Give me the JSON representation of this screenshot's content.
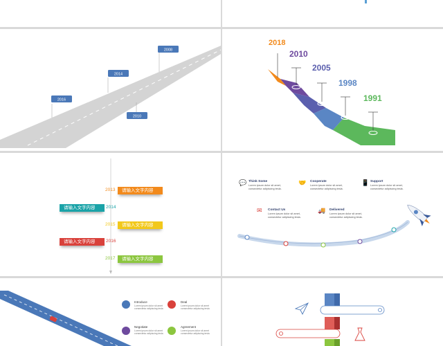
{
  "colors": {
    "bg": "#d9d9d9",
    "blue_box": "#4a78b8",
    "road": "#d4d4d4",
    "orange": "#f28a1c",
    "purple": "#6e4a9e",
    "indigo": "#5b5fae",
    "steel": "#5a86c4",
    "green": "#5cb85c",
    "teal": "#1aa3a8",
    "yellow": "#f2c81b",
    "red": "#d9413b",
    "lime": "#8cc63f"
  },
  "road_timeline": {
    "labels": [
      "2008",
      "2014",
      "2016",
      "2010"
    ]
  },
  "stair_timeline": {
    "years": [
      {
        "label": "2018",
        "color": "#f28a1c"
      },
      {
        "label": "2010",
        "color": "#6e4a9e"
      },
      {
        "label": "2005",
        "color": "#5b5fae"
      },
      {
        "label": "1998",
        "color": "#5a86c4"
      },
      {
        "label": "1991",
        "color": "#5cb85c"
      }
    ]
  },
  "vertical_timeline": {
    "items": [
      {
        "year": "2013",
        "text": "请输入文字内容",
        "color": "#f28a1c",
        "year_color": "#f28a1c"
      },
      {
        "year": "2014",
        "text": "请输入文字内容",
        "color": "#1aa3a8",
        "year_color": "#1aa3a8"
      },
      {
        "year": "2015",
        "text": "请输入文字内容",
        "color": "#f2c81b",
        "year_color": "#f2c81b"
      },
      {
        "year": "2016",
        "text": "请输入文字内容",
        "color": "#d9413b",
        "year_color": "#d9413b"
      },
      {
        "year": "2017",
        "text": "请输入文字内容",
        "color": "#8cc63f",
        "year_color": "#8cc63f"
      }
    ]
  },
  "features": {
    "items": [
      {
        "title": "Think Some",
        "desc": "Lorem ipsum dolor sit amet, consectetur adipiscing tesla.",
        "icon": "chat-icon",
        "glyph": "💬",
        "color": "#3a7bd5"
      },
      {
        "title": "Cooperate",
        "desc": "Lorem ipsum dolor sit amet, consectetur adipiscing tesla.",
        "icon": "handshake-icon",
        "glyph": "🤝",
        "color": "#4caf50"
      },
      {
        "title": "Support",
        "desc": "Lorem ipsum dolor sit amet, consectetur adipiscing tesla.",
        "icon": "support-icon",
        "glyph": "📱",
        "color": "#1aa3a8"
      },
      {
        "title": "Contact Us",
        "desc": "Lorem ipsum dolor sit amet, consectetur adipiscing tesla.",
        "icon": "mail-icon",
        "glyph": "✉",
        "color": "#d9413b"
      },
      {
        "title": "Delivered",
        "desc": "Lorem ipsum dolor sit amet, consectetur adipiscing tesla.",
        "icon": "truck-icon",
        "glyph": "🚚",
        "color": "#6e4a9e"
      }
    ]
  },
  "info_slide": {
    "items": [
      {
        "title": "Introduce",
        "desc": "Lorem ipsum dolor sit amet consectetur adipiscing tesla",
        "icon": "users-icon",
        "color": "#4a78b8"
      },
      {
        "title": "Deal",
        "desc": "Lorem ipsum dolor sit amet consectetur adipiscing tesla",
        "icon": "handshake-icon",
        "color": "#d9413b"
      },
      {
        "title": "Negotiate",
        "desc": "Lorem ipsum dolor sit amet consectetur adipiscing tesla",
        "icon": "chat-icon",
        "color": "#6e4a9e"
      },
      {
        "title": "Agreement",
        "desc": "Lorem ipsum dolor sit amet consectetur adipiscing tesla",
        "icon": "pen-icon",
        "color": "#8cc63f"
      }
    ]
  }
}
